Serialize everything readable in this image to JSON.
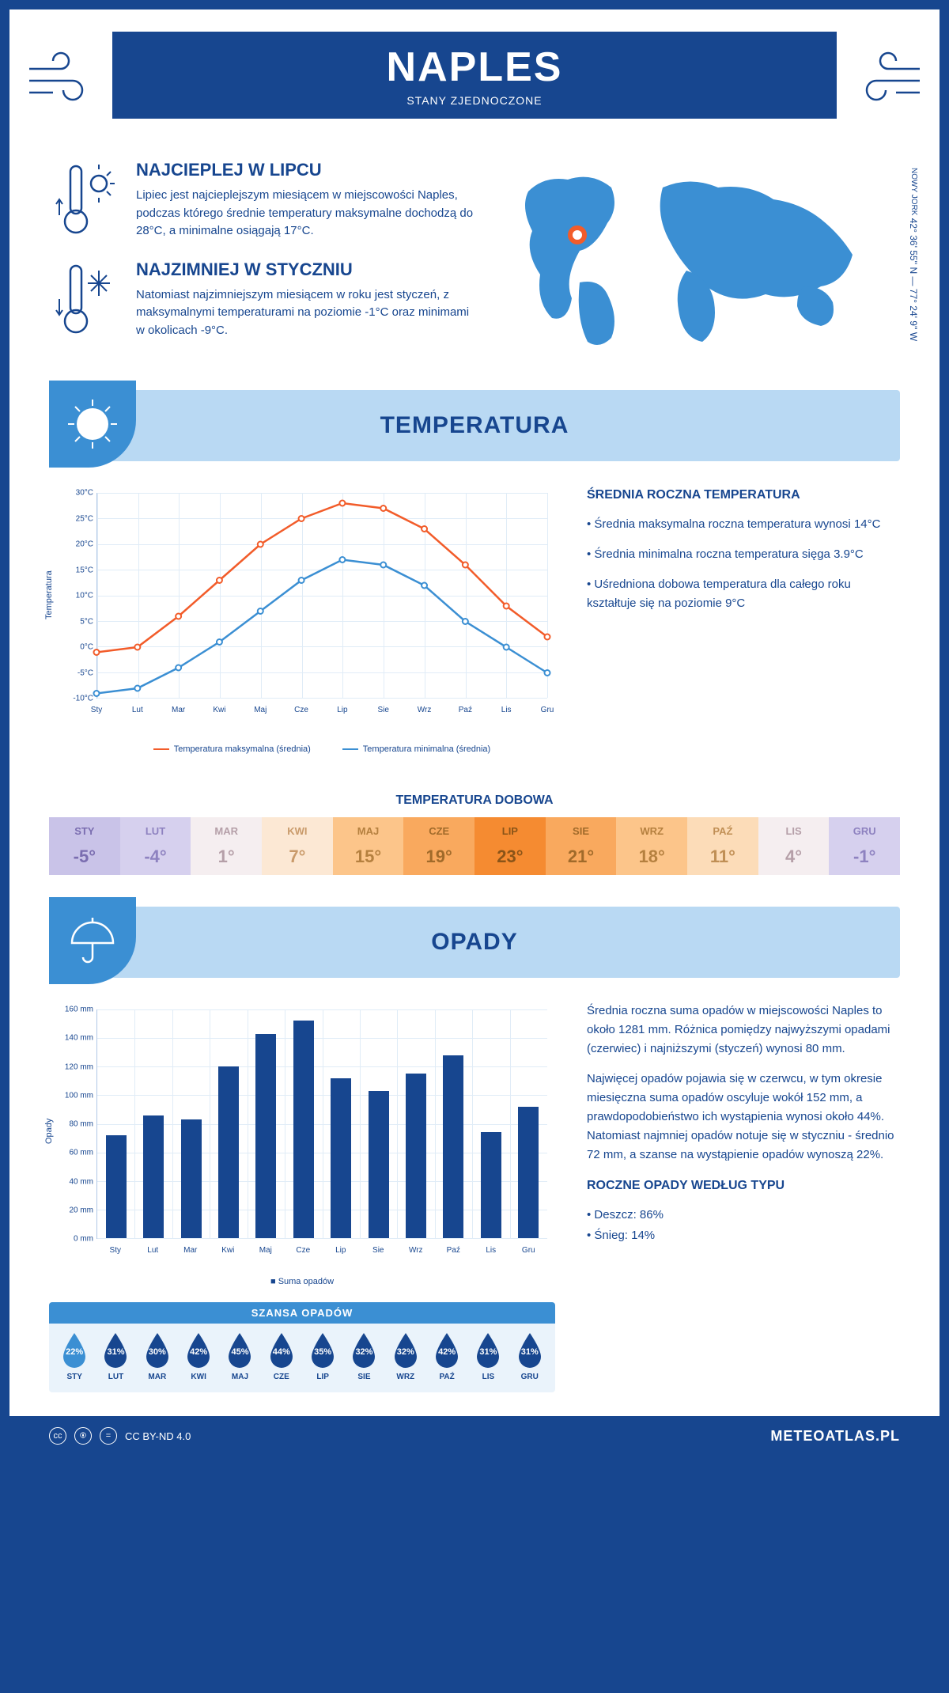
{
  "header": {
    "title": "NAPLES",
    "subtitle": "STANY ZJEDNOCZONE"
  },
  "coords": {
    "lat": "42° 36' 55'' N — 77° 24' 9'' W",
    "tz": "NOWY JORK"
  },
  "facts": {
    "warm": {
      "title": "NAJCIEPLEJ W LIPCU",
      "text": "Lipiec jest najcieplejszym miesiącem w miejscowości Naples, podczas którego średnie temperatury maksymalne dochodzą do 28°C, a minimalne osiągają 17°C."
    },
    "cold": {
      "title": "NAJZIMNIEJ W STYCZNIU",
      "text": "Natomiast najzimniejszym miesiącem w roku jest styczeń, z maksymalnymi temperaturami na poziomie -1°C oraz minimami w okolicach -9°C."
    }
  },
  "temp_section": {
    "title": "TEMPERATURA",
    "avg_title": "ŚREDNIA ROCZNA TEMPERATURA",
    "bullets": [
      "• Średnia maksymalna roczna temperatura wynosi 14°C",
      "• Średnia minimalna roczna temperatura sięga 3.9°C",
      "• Uśredniona dobowa temperatura dla całego roku kształtuje się na poziomie 9°C"
    ]
  },
  "line_chart": {
    "ylabel": "Temperatura",
    "ylim": [
      -10,
      30
    ],
    "ytick_step": 5,
    "yticks": [
      "-10°C",
      "-5°C",
      "0°C",
      "5°C",
      "10°C",
      "15°C",
      "20°C",
      "25°C",
      "30°C"
    ],
    "months": [
      "Sty",
      "Lut",
      "Mar",
      "Kwi",
      "Maj",
      "Cze",
      "Lip",
      "Sie",
      "Wrz",
      "Paź",
      "Lis",
      "Gru"
    ],
    "max_series": [
      -1,
      0,
      6,
      13,
      20,
      25,
      28,
      27,
      23,
      16,
      8,
      2
    ],
    "min_series": [
      -9,
      -8,
      -4,
      1,
      7,
      13,
      17,
      16,
      12,
      5,
      0,
      -5
    ],
    "max_color": "#f25c2a",
    "min_color": "#3b8fd3",
    "grid_color": "#e0ecf7",
    "legend_max": "Temperatura maksymalna (średnia)",
    "legend_min": "Temperatura minimalna (średnia)"
  },
  "daily_temp": {
    "title": "TEMPERATURA DOBOWA",
    "months": [
      "STY",
      "LUT",
      "MAR",
      "KWI",
      "MAJ",
      "CZE",
      "LIP",
      "SIE",
      "WRZ",
      "PAŹ",
      "LIS",
      "GRU"
    ],
    "values": [
      "-5°",
      "-4°",
      "1°",
      "7°",
      "15°",
      "19°",
      "23°",
      "21°",
      "18°",
      "11°",
      "4°",
      "-1°"
    ],
    "bg_colors": [
      "#c9c3e8",
      "#d6d0ee",
      "#f5eef0",
      "#fce8d4",
      "#fcc58a",
      "#f9a95e",
      "#f58b31",
      "#f9a95e",
      "#fcc58a",
      "#fcdcb8",
      "#f5eef0",
      "#d6d0ee"
    ],
    "text_colors": [
      "#7a6db0",
      "#8e82c0",
      "#b59fa8",
      "#c99a6a",
      "#b5803f",
      "#a06a2a",
      "#8a5418",
      "#a06a2a",
      "#b5803f",
      "#c08f55",
      "#b59fa8",
      "#8e82c0"
    ]
  },
  "precip_section": {
    "title": "OPADY",
    "para1": "Średnia roczna suma opadów w miejscowości Naples to około 1281 mm. Różnica pomiędzy najwyższymi opadami (czerwiec) i najniższymi (styczeń) wynosi 80 mm.",
    "para2": "Najwięcej opadów pojawia się w czerwcu, w tym okresie miesięczna suma opadów oscyluje wokół 152 mm, a prawdopodobieństwo ich wystąpienia wynosi około 44%. Natomiast najmniej opadów notuje się w styczniu - średnio 72 mm, a szanse na wystąpienie opadów wynoszą 22%.",
    "type_title": "ROCZNE OPADY WEDŁUG TYPU",
    "type_rain": "• Deszcz: 86%",
    "type_snow": "• Śnieg: 14%"
  },
  "bar_chart": {
    "ylabel": "Opady",
    "ylim": [
      0,
      160
    ],
    "ytick_step": 20,
    "yticks": [
      "0 mm",
      "20 mm",
      "40 mm",
      "60 mm",
      "80 mm",
      "100 mm",
      "120 mm",
      "140 mm",
      "160 mm"
    ],
    "months": [
      "Sty",
      "Lut",
      "Mar",
      "Kwi",
      "Maj",
      "Cze",
      "Lip",
      "Sie",
      "Wrz",
      "Paź",
      "Lis",
      "Gru"
    ],
    "values": [
      72,
      86,
      83,
      120,
      143,
      152,
      112,
      103,
      115,
      128,
      74,
      92
    ],
    "bar_color": "#17468f",
    "legend": "Suma opadów"
  },
  "chance": {
    "title": "SZANSA OPADÓW",
    "months": [
      "STY",
      "LUT",
      "MAR",
      "KWI",
      "MAJ",
      "CZE",
      "LIP",
      "SIE",
      "WRZ",
      "PAŹ",
      "LIS",
      "GRU"
    ],
    "values": [
      "22%",
      "31%",
      "30%",
      "42%",
      "45%",
      "44%",
      "35%",
      "32%",
      "32%",
      "42%",
      "31%",
      "31%"
    ],
    "light_color": "#3b8fd3",
    "dark_color": "#17468f"
  },
  "footer": {
    "license": "CC BY-ND 4.0",
    "site": "METEOATLAS.PL"
  }
}
